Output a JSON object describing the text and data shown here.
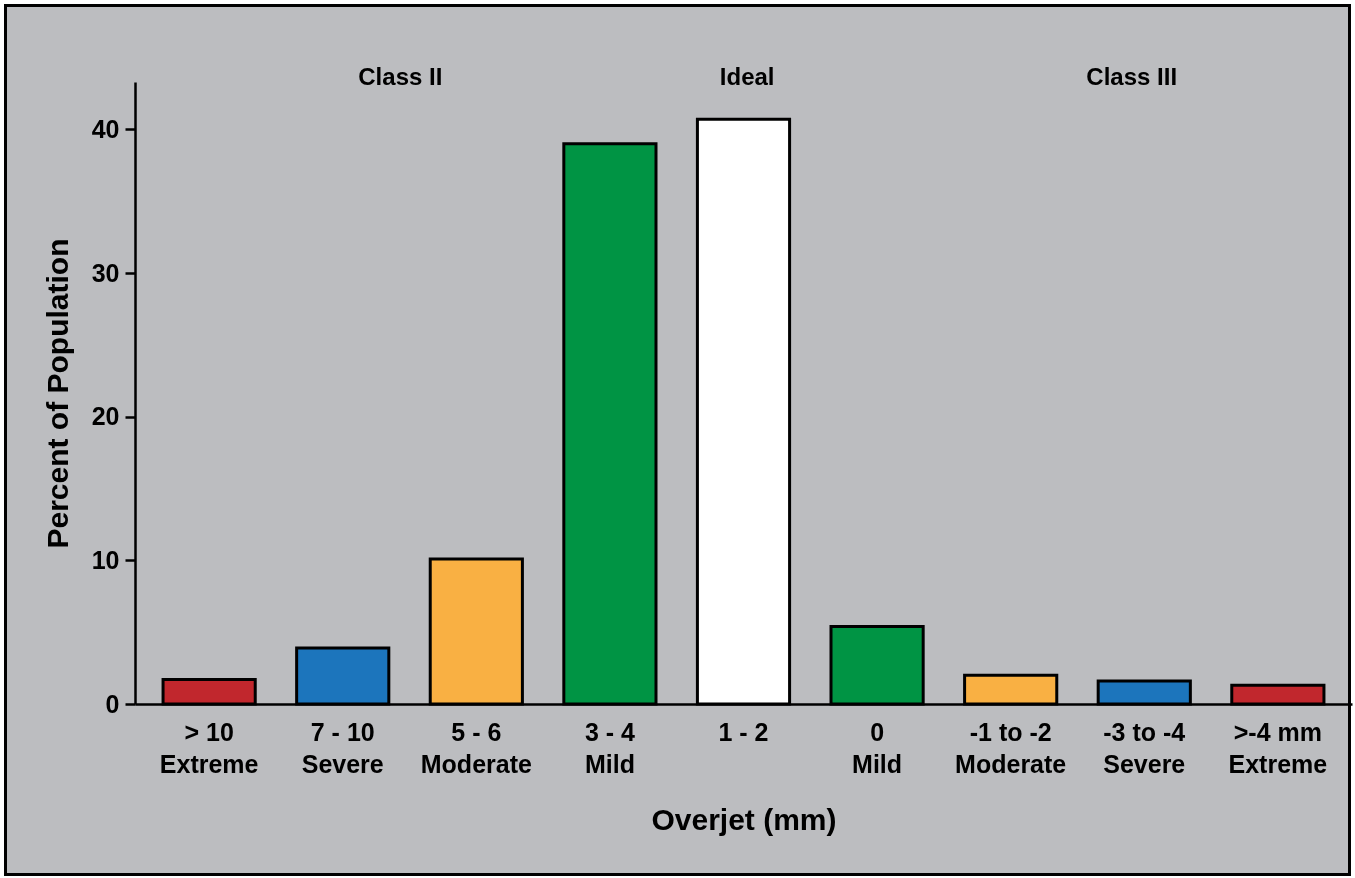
{
  "chart_data": {
    "type": "bar",
    "xlabel": "Overjet (mm)",
    "ylabel": "Percent of Population",
    "categories": [
      "> 10\nExtreme",
      "7 - 10\nSevere",
      "5 - 6\nModerate",
      "3 - 4\nMild",
      "1 - 2",
      "0\nMild",
      "-1 to -2\nModerate",
      "-3 to -4\nSevere",
      ">-4 mm\nExtreme"
    ],
    "values": [
      1.7,
      3.9,
      10.1,
      39.0,
      40.7,
      5.4,
      2.0,
      1.6,
      1.3
    ],
    "colors": [
      "#c1272d",
      "#1c75bc",
      "#f9b043",
      "#009444",
      "#ffffff",
      "#009444",
      "#f9b043",
      "#1c75bc",
      "#c1272d"
    ],
    "ylim": [
      0,
      43.3
    ],
    "yticks": [
      0,
      10,
      20,
      30,
      40
    ],
    "grid": false,
    "annotations": [
      "Class II",
      "Ideal",
      "Class III"
    ]
  }
}
